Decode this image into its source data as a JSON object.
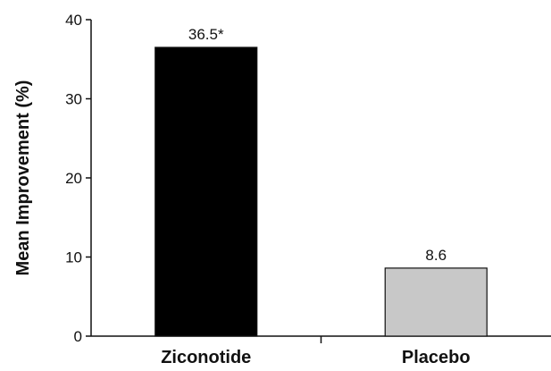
{
  "chart_data": {
    "type": "bar",
    "title": "",
    "xlabel": "",
    "ylabel": "Mean Improvement (%)",
    "categories": [
      "Ziconotide",
      "Placebo"
    ],
    "values": [
      36.5,
      8.6
    ],
    "data_labels": [
      "36.5*",
      "8.6"
    ],
    "bar_colors": [
      "#000000",
      "#c8c8c8"
    ],
    "ylim": [
      0,
      40
    ],
    "yticks": [
      0,
      10,
      20,
      30,
      40
    ],
    "grid": false,
    "legend": "none"
  }
}
